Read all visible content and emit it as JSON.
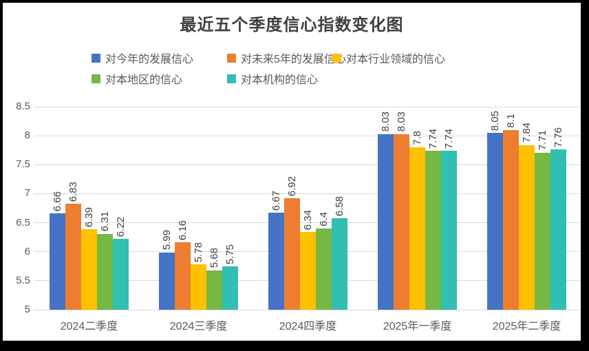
{
  "chart_data": {
    "type": "bar",
    "title": "最近五个季度信心指数变化图",
    "categories": [
      "2024二季度",
      "2024三季度",
      "2024四季度",
      "2025年一季度",
      "2025年二季度"
    ],
    "series": [
      {
        "name": "对今年的发展信心",
        "color": "#4472C4",
        "values": [
          6.66,
          5.99,
          6.67,
          8.03,
          8.05
        ]
      },
      {
        "name": "对未来5年的发展信心",
        "color": "#ED7D31",
        "values": [
          6.83,
          6.16,
          6.92,
          8.03,
          8.1
        ]
      },
      {
        "name": "对本行业领域的信心",
        "color": "#FFC000",
        "values": [
          6.39,
          5.78,
          6.34,
          7.8,
          7.84
        ]
      },
      {
        "name": "对本地区的信心",
        "color": "#75B843",
        "values": [
          6.31,
          5.68,
          6.4,
          7.74,
          7.71
        ]
      },
      {
        "name": "对本机构的信心",
        "color": "#31BFB4",
        "values": [
          6.22,
          5.75,
          6.58,
          7.74,
          7.76
        ]
      }
    ],
    "y_axis": {
      "min": 5,
      "max": 8.5,
      "step": 0.5,
      "tick_labels": [
        "5",
        "5.5",
        "6",
        "6.5",
        "7",
        "7.5",
        "8",
        "8.5"
      ]
    },
    "grid": true,
    "legend_position": "top-left-two-rows",
    "data_labels_rotated": true,
    "colors": {
      "gridline": "#D9D9D9",
      "axis_text": "#595959",
      "data_label_text": "#404040",
      "title_text": "#3F3F3F",
      "background": "#FFFFFF",
      "frame": "#000000"
    }
  }
}
